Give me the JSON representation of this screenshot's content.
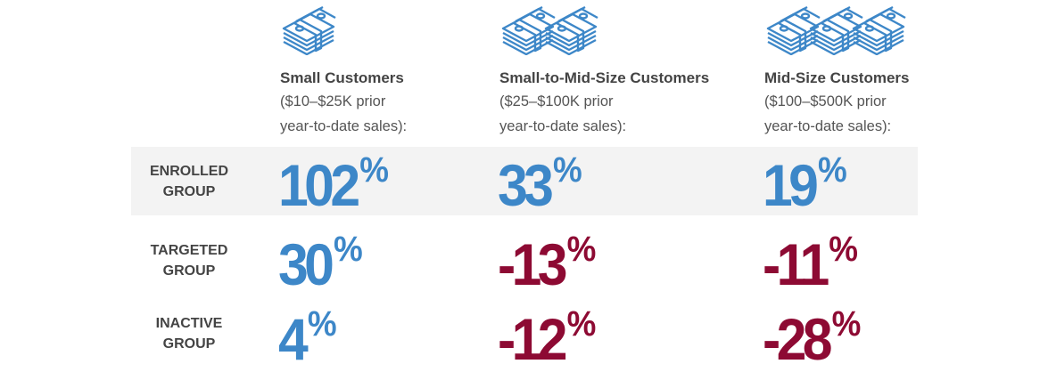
{
  "colors": {
    "positive": "#3d87c8",
    "negative": "#8d0a33",
    "band": "#f3f3f3"
  },
  "columns": [
    {
      "icon": "money-stack-icon",
      "icon_count": 1,
      "title": "Small Customers",
      "sub1": "($10–$25K prior",
      "sub2": "year-to-date sales):"
    },
    {
      "icon": "money-stack-icon",
      "icon_count": 2,
      "title": "Small-to-Mid-Size Customers",
      "sub1": "($25–$100K prior",
      "sub2": "year-to-date sales):"
    },
    {
      "icon": "money-stack-icon",
      "icon_count": 3,
      "title": "Mid-Size Customers",
      "sub1": "($100–$500K prior",
      "sub2": "year-to-date sales):"
    }
  ],
  "rows": [
    {
      "label1": "ENROLLED",
      "label2": "GROUP",
      "values": [
        {
          "num": "102",
          "sign": "pos"
        },
        {
          "num": "33",
          "sign": "pos"
        },
        {
          "num": "19",
          "sign": "pos"
        }
      ]
    },
    {
      "label1": "TARGETED",
      "label2": "GROUP",
      "values": [
        {
          "num": "30",
          "sign": "pos"
        },
        {
          "num": "-13",
          "sign": "neg"
        },
        {
          "num": "-11",
          "sign": "neg"
        }
      ]
    },
    {
      "label1": "INACTIVE",
      "label2": "GROUP",
      "values": [
        {
          "num": "4",
          "sign": "pos"
        },
        {
          "num": "-12",
          "sign": "neg"
        },
        {
          "num": "-28",
          "sign": "neg"
        }
      ]
    }
  ],
  "percent": "%"
}
